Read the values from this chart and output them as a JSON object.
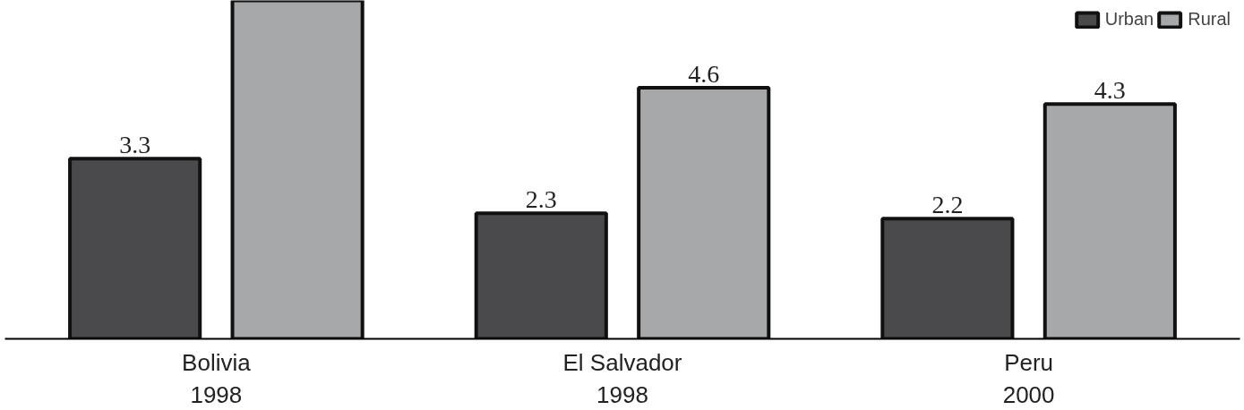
{
  "chart_data": {
    "type": "bar",
    "categories": [
      "Bolivia\n1998",
      "El Salvador\n1998",
      "Peru\n2000"
    ],
    "series": [
      {
        "name": "Urban",
        "color": "#4a4a4c",
        "values": [
          3.3,
          2.3,
          2.2
        ],
        "value_labels": [
          "3.3",
          "2.3",
          "2.2"
        ]
      },
      {
        "name": "Rural",
        "color": "#a6a8aa",
        "values": [
          6.2,
          4.6,
          4.3
        ],
        "value_labels": [
          null,
          "4.6",
          "4.3"
        ]
      }
    ],
    "ylim": [
      0,
      6.2
    ],
    "legend": "top right",
    "grid": false
  }
}
